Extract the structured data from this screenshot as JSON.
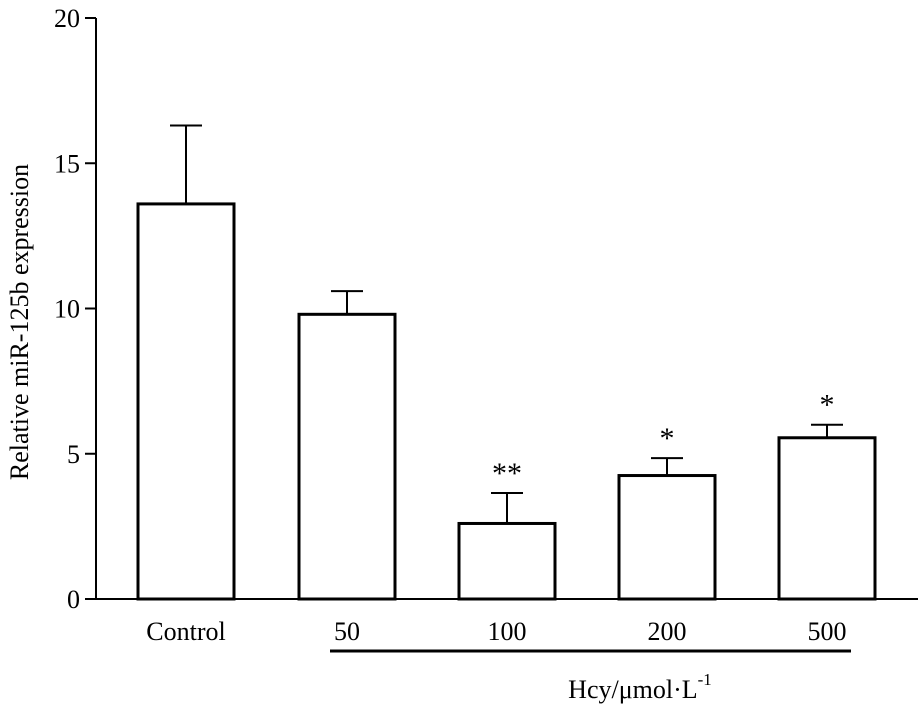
{
  "chart_data": {
    "type": "bar",
    "categories": [
      "Control",
      "50",
      "100",
      "200",
      "500"
    ],
    "values": [
      13.6,
      9.8,
      2.6,
      4.25,
      5.55
    ],
    "errors": [
      2.7,
      0.8,
      1.05,
      0.6,
      0.45
    ],
    "annotations": [
      "",
      "",
      "**",
      "*",
      "*"
    ],
    "ylabel": "Relative miR-125b expression",
    "ylim": [
      0,
      20
    ],
    "yticks": [
      "0",
      "5",
      "10",
      "15",
      "20"
    ],
    "group_label": {
      "text": "Hcy/μmol·L",
      "superscript": "-1",
      "spans_categories": [
        "50",
        "100",
        "200",
        "500"
      ]
    },
    "grid": false,
    "legend": "none",
    "bar_fill": "#ffffff",
    "bar_stroke": "#000000"
  }
}
